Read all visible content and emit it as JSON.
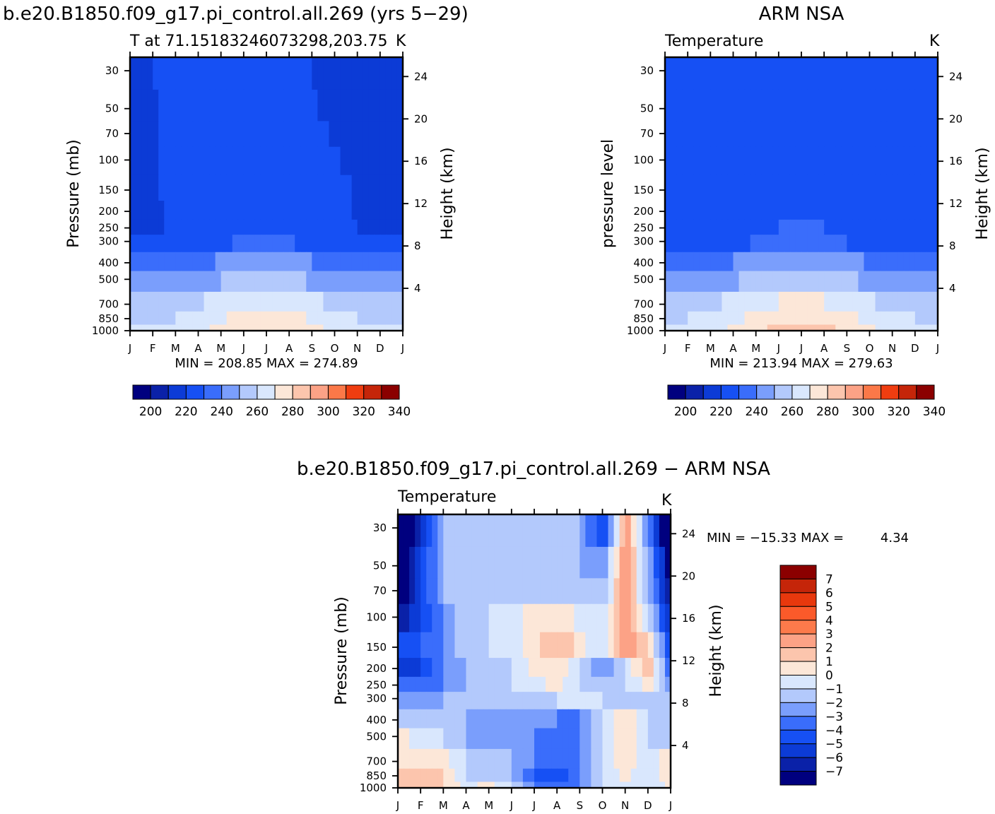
{
  "headers": {
    "model_title": "b.e20.B1850.f09_g17.pi_control.all.269 (yrs 5−29)",
    "obs_title": "ARM NSA",
    "diff_title": "b.e20.B1850.f09_g17.pi_control.all.269 − ARM NSA"
  },
  "chart_data": [
    {
      "id": "model",
      "type": "heatmap",
      "title": "T at 71.15183246073298,203.75",
      "units": "K",
      "ylabel": "Pressure (mb)",
      "y2label": "Height (km)",
      "x_ticks": [
        "J",
        "F",
        "M",
        "A",
        "M",
        "J",
        "J",
        "A",
        "S",
        "O",
        "N",
        "D",
        "J"
      ],
      "p_ticks": [
        30,
        50,
        70,
        100,
        150,
        200,
        250,
        300,
        400,
        500,
        700,
        850,
        1000
      ],
      "z_ticks": [
        24,
        20,
        16,
        12,
        8,
        4
      ],
      "min_max": "MIN = 208.85 MAX = 274.89",
      "colorbar_labels": [
        "200",
        "220",
        "240",
        "260",
        "280",
        "300",
        "320",
        "340"
      ],
      "colors": [
        "#00007f",
        "#0a21a8",
        "#0c3bd6",
        "#1650f4",
        "#3a6dfb",
        "#7a9efc",
        "#b3c9fc",
        "#d9e7fd",
        "#fce7d8",
        "#fcc5ad",
        "#fca286",
        "#fb7848",
        "#ef3d10",
        "#c52509",
        "#8b0000"
      ],
      "bands": [
        {
          "p": 30,
          "T": [
            212,
            215,
            218,
            217,
            216,
            217,
            219,
            218,
            215,
            212,
            211,
            211,
            212
          ]
        },
        {
          "p": 50,
          "T": [
            212,
            214,
            217,
            218,
            217,
            218,
            219,
            218,
            216,
            212,
            211,
            211,
            212
          ]
        },
        {
          "p": 70,
          "T": [
            212,
            214,
            217,
            218,
            218,
            218,
            219,
            218,
            217,
            214,
            212,
            212,
            212
          ]
        },
        {
          "p": 100,
          "T": [
            212,
            214,
            217,
            219,
            219,
            219,
            220,
            219,
            218,
            216,
            213,
            212,
            212
          ]
        },
        {
          "p": 150,
          "T": [
            212,
            214,
            217,
            219,
            220,
            220,
            221,
            220,
            219,
            218,
            214,
            212,
            212
          ]
        },
        {
          "p": 200,
          "T": [
            212,
            214,
            216,
            219,
            221,
            221,
            222,
            221,
            219,
            217,
            214,
            212,
            212
          ]
        },
        {
          "p": 250,
          "T": [
            213,
            214,
            216,
            219,
            222,
            223,
            223,
            222,
            220,
            217,
            215,
            213,
            213
          ]
        },
        {
          "p": 300,
          "T": [
            216,
            217,
            218,
            220,
            224,
            226,
            227,
            226,
            223,
            220,
            218,
            216,
            216
          ]
        },
        {
          "p": 400,
          "T": [
            226,
            227,
            229,
            232,
            236,
            238,
            239,
            238,
            235,
            231,
            228,
            226,
            226
          ]
        },
        {
          "p": 500,
          "T": [
            235,
            236,
            238,
            241,
            245,
            248,
            249,
            248,
            244,
            240,
            237,
            235,
            235
          ]
        },
        {
          "p": 700,
          "T": [
            248,
            248,
            250,
            254,
            258,
            261,
            262,
            261,
            257,
            253,
            249,
            248,
            248
          ]
        },
        {
          "p": 850,
          "T": [
            252,
            253,
            255,
            259,
            264,
            268,
            269,
            268,
            264,
            259,
            255,
            253,
            252
          ]
        },
        {
          "p": 1000,
          "T": [
            255,
            256,
            258,
            263,
            268,
            273,
            274,
            273,
            268,
            262,
            257,
            255,
            255
          ]
        }
      ]
    },
    {
      "id": "obs",
      "type": "heatmap",
      "title": "Temperature",
      "units": "K",
      "ylabel": "pressure level",
      "y2label": "Height (km)",
      "x_ticks": [
        "J",
        "F",
        "M",
        "A",
        "M",
        "J",
        "J",
        "A",
        "S",
        "O",
        "N",
        "D",
        "J"
      ],
      "p_ticks": [
        30,
        50,
        70,
        100,
        150,
        200,
        250,
        300,
        400,
        500,
        700,
        850,
        1000
      ],
      "z_ticks": [
        24,
        20,
        16,
        12,
        8,
        4
      ],
      "min_max": "MIN = 213.94 MAX = 279.63",
      "colorbar_labels": [
        "200",
        "220",
        "240",
        "260",
        "280",
        "300",
        "320",
        "340"
      ],
      "colors": [
        "#00007f",
        "#0a21a8",
        "#0c3bd6",
        "#1650f4",
        "#3a6dfb",
        "#7a9efc",
        "#b3c9fc",
        "#d9e7fd",
        "#fce7d8",
        "#fcc5ad",
        "#fca286",
        "#fb7848",
        "#ef3d10",
        "#c52509",
        "#8b0000"
      ],
      "bands": [
        {
          "p": 30,
          "T": [
            221,
            222,
            222,
            223,
            224,
            224,
            221,
            224,
            222,
            221,
            219,
            219,
            221
          ]
        },
        {
          "p": 50,
          "T": [
            221,
            222,
            222,
            223,
            224,
            224,
            223,
            224,
            222,
            221,
            219,
            219,
            221
          ]
        },
        {
          "p": 70,
          "T": [
            221,
            222,
            222,
            223,
            224,
            224,
            224,
            224,
            223,
            221,
            219,
            219,
            221
          ]
        },
        {
          "p": 100,
          "T": [
            221,
            222,
            222,
            223,
            224,
            224,
            224,
            224,
            223,
            221,
            219,
            219,
            221
          ]
        },
        {
          "p": 150,
          "T": [
            221,
            221,
            222,
            223,
            224,
            224,
            224,
            224,
            223,
            221,
            219,
            219,
            221
          ]
        },
        {
          "p": 200,
          "T": [
            219,
            220,
            221,
            223,
            224,
            224,
            224,
            224,
            223,
            221,
            219,
            219,
            219
          ]
        },
        {
          "p": 250,
          "T": [
            218,
            219,
            220,
            222,
            224,
            225,
            226,
            225,
            223,
            221,
            219,
            218,
            218
          ]
        },
        {
          "p": 300,
          "T": [
            219,
            219,
            221,
            223,
            226,
            228,
            229,
            228,
            225,
            222,
            220,
            219,
            219
          ]
        },
        {
          "p": 400,
          "T": [
            229,
            230,
            232,
            235,
            239,
            242,
            243,
            242,
            238,
            234,
            231,
            229,
            229
          ]
        },
        {
          "p": 500,
          "T": [
            238,
            239,
            241,
            244,
            249,
            252,
            253,
            252,
            248,
            243,
            240,
            238,
            238
          ]
        },
        {
          "p": 700,
          "T": [
            250,
            251,
            253,
            257,
            262,
            265,
            266,
            265,
            261,
            256,
            252,
            250,
            250
          ]
        },
        {
          "p": 850,
          "T": [
            254,
            255,
            257,
            262,
            268,
            272,
            273,
            272,
            268,
            262,
            257,
            255,
            254
          ]
        },
        {
          "p": 1000,
          "T": [
            257,
            258,
            261,
            266,
            273,
            278,
            279,
            278,
            273,
            266,
            260,
            258,
            257
          ]
        }
      ]
    },
    {
      "id": "diff",
      "type": "heatmap",
      "title": "Temperature",
      "units": "K",
      "ylabel": "Pressure (mb)",
      "y2label": "Height (km)",
      "x_ticks": [
        "J",
        "F",
        "M",
        "A",
        "M",
        "J",
        "J",
        "A",
        "S",
        "O",
        "N",
        "D",
        "J"
      ],
      "p_ticks": [
        30,
        50,
        70,
        100,
        150,
        200,
        250,
        300,
        400,
        500,
        700,
        850,
        1000
      ],
      "z_ticks": [
        24,
        20,
        16,
        12,
        8,
        4
      ],
      "min_max_label": "MIN = −15.33 MAX =",
      "max_value": "4.34",
      "colorbar_labels": [
        "7",
        "6",
        "5",
        "4",
        "3",
        "2",
        "1",
        "0",
        "−1",
        "−2",
        "−3",
        "−4",
        "−5",
        "−6",
        "−7"
      ],
      "colors": [
        "#8b0000",
        "#c52509",
        "#e8380d",
        "#fb5a2a",
        "#fc7a4b",
        "#fca286",
        "#fcc5ad",
        "#fce7d8",
        "#d9e7fd",
        "#b3c9fc",
        "#7a9efc",
        "#3a6dfb",
        "#1650f4",
        "#0c3bd6",
        "#0a21a8",
        "#00007f"
      ],
      "bands": [
        {
          "p": 30,
          "T": [
            -10,
            -6,
            -2,
            -1,
            -1,
            -1,
            -1,
            -1,
            -2,
            -5,
            3,
            -3,
            -10
          ]
        },
        {
          "p": 50,
          "T": [
            -10,
            -5,
            -2,
            -1,
            -1,
            -1,
            -1,
            -1,
            -2,
            -3,
            3,
            -2,
            -8
          ]
        },
        {
          "p": 70,
          "T": [
            -9,
            -5,
            -2,
            -1,
            -2,
            -1,
            -1,
            -1,
            -1,
            -2,
            3,
            -2,
            -7
          ]
        },
        {
          "p": 100,
          "T": [
            -7,
            -5,
            -3,
            -1,
            -1,
            -0.5,
            0.5,
            1,
            -0.5,
            -1,
            3,
            -1,
            -6
          ]
        },
        {
          "p": 150,
          "T": [
            -5,
            -4,
            -3,
            -1,
            -1,
            -0.5,
            0.5,
            2,
            0.5,
            -1,
            3,
            1,
            -5
          ]
        },
        {
          "p": 200,
          "T": [
            -5,
            -5,
            -3,
            -2,
            -1,
            -1,
            0.5,
            1,
            -1,
            -3,
            -1,
            2,
            -4
          ]
        },
        {
          "p": 250,
          "T": [
            -3,
            -3,
            -3,
            -2,
            -1,
            -1,
            -0.5,
            0.5,
            -1,
            -2,
            -1,
            0.5,
            -3
          ]
        },
        {
          "p": 300,
          "T": [
            -2,
            -2,
            -2,
            -1,
            -1,
            -1,
            -1,
            -1,
            -0.5,
            -1,
            -1,
            -1,
            -2
          ]
        },
        {
          "p": 400,
          "T": [
            -1,
            -1,
            -1,
            -2,
            -2,
            -2,
            -2,
            -3,
            -3,
            -1,
            1,
            -1,
            -1
          ]
        },
        {
          "p": 500,
          "T": [
            0.5,
            -0.5,
            -1,
            -2,
            -2,
            -2,
            -3,
            -4,
            -3,
            -1,
            1,
            -1,
            -1
          ]
        },
        {
          "p": 700,
          "T": [
            1,
            1,
            0.5,
            -1,
            -1,
            -2,
            -3,
            -4,
            -3,
            -1,
            1,
            -1,
            1
          ]
        },
        {
          "p": 850,
          "T": [
            1,
            2,
            1,
            -1,
            -1,
            -2,
            -4,
            -5,
            -3,
            -1,
            0.5,
            -1,
            1
          ]
        },
        {
          "p": 1000,
          "T": [
            1,
            2,
            1,
            -0.5,
            0.5,
            -1,
            -3,
            -4,
            -3,
            -1,
            -0.5,
            -1,
            0.5
          ]
        }
      ]
    }
  ]
}
